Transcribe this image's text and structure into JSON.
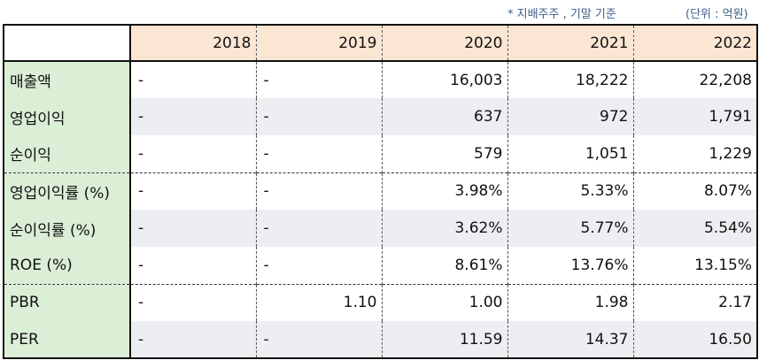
{
  "notes": {
    "basis": "* 지배주주 , 기말 기준",
    "unit": "(단위 : 억원)"
  },
  "colors": {
    "header_bg": "#fbe5d3",
    "label_bg": "#dbeed6",
    "shade_bg": "#eceef1",
    "note_text": "#3f5f8a"
  },
  "table": {
    "years": [
      "2018",
      "2019",
      "2020",
      "2021",
      "2022"
    ],
    "rows": [
      {
        "label": "매출액",
        "values": [
          "-",
          "-",
          "16,003",
          "18,222",
          "22,208"
        ]
      },
      {
        "label": "영업이익",
        "values": [
          "-",
          "-",
          "637",
          "972",
          "1,791"
        ]
      },
      {
        "label": "순이익",
        "values": [
          "-",
          "-",
          "579",
          "1,051",
          "1,229"
        ]
      },
      {
        "label": "영업이익률 (%)",
        "values": [
          "-",
          "-",
          "3.98%",
          "5.33%",
          "8.07%"
        ]
      },
      {
        "label": "순이익률 (%)",
        "values": [
          "-",
          "-",
          "3.62%",
          "5.77%",
          "5.54%"
        ]
      },
      {
        "label": "ROE (%)",
        "values": [
          "-",
          "-",
          "8.61%",
          "13.76%",
          "13.15%"
        ]
      },
      {
        "label": "PBR",
        "values": [
          "-",
          "1.10",
          "1.00",
          "1.98",
          "2.17"
        ]
      },
      {
        "label": "PER",
        "values": [
          "-",
          "-",
          "11.59",
          "14.37",
          "16.50"
        ]
      }
    ]
  }
}
